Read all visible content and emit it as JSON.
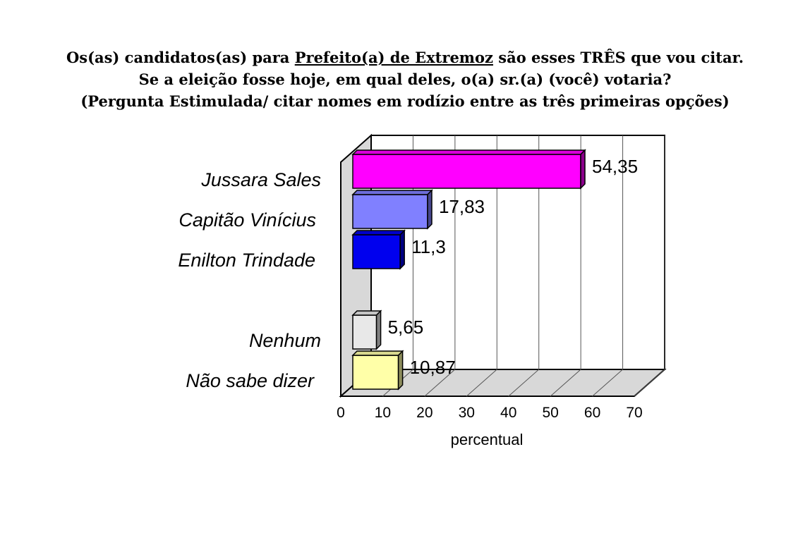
{
  "title": {
    "line1_pre": "Os(as) candidatos(as) para ",
    "line1_underlined": "Prefeito(a) de Extremoz",
    "line1_post": " são esses TRÊS que vou citar.",
    "line2": "Se a eleição fosse hoje, em qual deles, o(a) sr.(a) (você) votaria?",
    "line3": "(Pergunta Estimulada/ citar nomes em rodízio entre as três primeiras opções)"
  },
  "chart_data": {
    "type": "bar",
    "orientation": "horizontal",
    "style": "3d",
    "categories": [
      "Jussara Sales",
      "Capitão Vinícius",
      "Enilton Trindade",
      "Nenhum",
      "Não sabe dizer"
    ],
    "values": [
      54.35,
      17.83,
      11.3,
      5.65,
      10.87
    ],
    "value_labels": [
      "54,35",
      "17,83",
      "11,3",
      "5,65",
      "10,87"
    ],
    "colors": [
      "#ff00ff",
      "#8080ff",
      "#0000ee",
      "#e8e8e8",
      "#ffffa8"
    ],
    "xlabel": "percentual",
    "xlim": [
      0,
      70
    ],
    "xticks": [
      0,
      10,
      20,
      30,
      40,
      50,
      60,
      70
    ],
    "grid": true,
    "legend": "none"
  }
}
